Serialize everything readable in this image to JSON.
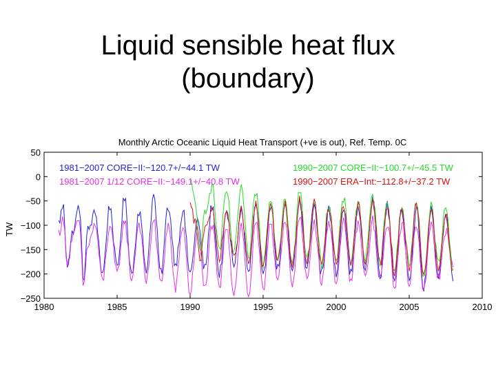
{
  "slide": {
    "title_line1": "Liquid sensible heat flux",
    "title_line2": "(boundary)"
  },
  "chart_data": {
    "type": "line",
    "title": "Monthly Arctic Oceanic Liquid Heat Transport (+ve is out), Ref. Temp. 0C",
    "ylabel": "TW",
    "xlabel": "",
    "xlim": [
      1980,
      2010
    ],
    "ylim": [
      -250,
      50
    ],
    "x_ticks": [
      1980,
      1985,
      1990,
      1995,
      2000,
      2005,
      2010
    ],
    "y_ticks": [
      50,
      0,
      -50,
      -100,
      -150,
      -200,
      -250
    ],
    "grid": false,
    "legend_placement": "top (two columns, text labels)",
    "series": [
      {
        "name": "1981−2007 CORE−II:−120.7+/−44.1 TW",
        "color": "#1f1fd6",
        "start": 1981.0,
        "end": 2008.0,
        "mean": -120.7,
        "std": 44.1,
        "sample_points": [
          [
            1981.0,
            -95
          ],
          [
            1981.3,
            -60
          ],
          [
            1981.6,
            -180
          ],
          [
            1982.0,
            -110
          ],
          [
            1982.4,
            -60
          ],
          [
            1982.7,
            -210
          ],
          [
            1983.0,
            -110
          ],
          [
            1983.5,
            -75
          ],
          [
            1984.0,
            -200
          ],
          [
            1984.5,
            -60
          ],
          [
            1985.0,
            -190
          ],
          [
            1985.5,
            -45
          ],
          [
            1986.0,
            -200
          ],
          [
            1986.5,
            -70
          ],
          [
            1987.0,
            -190
          ],
          [
            1987.5,
            -40
          ],
          [
            1988.0,
            -200
          ],
          [
            1988.5,
            -60
          ],
          [
            1989.0,
            -180
          ],
          [
            1989.5,
            -70
          ],
          [
            1990.0,
            -200
          ],
          [
            1990.5,
            -90
          ],
          [
            1991.0,
            -190
          ],
          [
            1991.5,
            -60
          ],
          [
            1992.0,
            -200
          ],
          [
            1992.5,
            -75
          ],
          [
            1993.0,
            -180
          ],
          [
            1993.5,
            -70
          ],
          [
            1994.0,
            -200
          ],
          [
            1994.5,
            -60
          ],
          [
            1995.0,
            -210
          ],
          [
            1995.5,
            -55
          ],
          [
            1996.0,
            -190
          ],
          [
            1996.5,
            -65
          ],
          [
            1997.0,
            -200
          ],
          [
            1997.5,
            -50
          ],
          [
            1998.0,
            -190
          ],
          [
            1998.5,
            -60
          ],
          [
            1999.0,
            -200
          ],
          [
            1999.5,
            -70
          ],
          [
            2000.0,
            -200
          ],
          [
            2000.5,
            -60
          ],
          [
            2001.0,
            -200
          ],
          [
            2001.5,
            -65
          ],
          [
            2002.0,
            -190
          ],
          [
            2002.5,
            -50
          ],
          [
            2003.0,
            -205
          ],
          [
            2003.5,
            -60
          ],
          [
            2004.0,
            -210
          ],
          [
            2004.5,
            -70
          ],
          [
            2005.0,
            -205
          ],
          [
            2005.5,
            -70
          ],
          [
            2006.0,
            -230
          ],
          [
            2006.5,
            -70
          ],
          [
            2007.0,
            -200
          ],
          [
            2007.5,
            -80
          ],
          [
            2008.0,
            -205
          ]
        ]
      },
      {
        "name": "1981−2007 1/12 CORE−II:−149.1+/−40.8 TW",
        "color": "#e62ee6",
        "start": 1981.0,
        "end": 2008.0,
        "mean": -149.1,
        "std": 40.8,
        "sample_points": [
          [
            1981.0,
            -115
          ],
          [
            1981.3,
            -90
          ],
          [
            1981.6,
            -175
          ],
          [
            1982.0,
            -120
          ],
          [
            1982.4,
            -90
          ],
          [
            1982.7,
            -225
          ],
          [
            1983.0,
            -140
          ],
          [
            1983.5,
            -100
          ],
          [
            1984.0,
            -215
          ],
          [
            1984.5,
            -100
          ],
          [
            1985.0,
            -200
          ],
          [
            1985.5,
            -90
          ],
          [
            1986.0,
            -210
          ],
          [
            1986.5,
            -95
          ],
          [
            1987.0,
            -215
          ],
          [
            1987.5,
            -90
          ],
          [
            1988.0,
            -220
          ],
          [
            1988.5,
            -100
          ],
          [
            1989.0,
            -230
          ],
          [
            1989.5,
            -100
          ],
          [
            1990.0,
            -240
          ],
          [
            1990.5,
            -110
          ],
          [
            1991.0,
            -230
          ],
          [
            1991.5,
            -100
          ],
          [
            1992.0,
            -230
          ],
          [
            1992.5,
            -100
          ],
          [
            1993.0,
            -240
          ],
          [
            1993.5,
            -100
          ],
          [
            1994.0,
            -245
          ],
          [
            1994.5,
            -95
          ],
          [
            1995.0,
            -235
          ],
          [
            1995.5,
            -90
          ],
          [
            1996.0,
            -215
          ],
          [
            1996.5,
            -95
          ],
          [
            1997.0,
            -220
          ],
          [
            1997.5,
            -80
          ],
          [
            1998.0,
            -215
          ],
          [
            1998.5,
            -90
          ],
          [
            1999.0,
            -215
          ],
          [
            1999.5,
            -90
          ],
          [
            2000.0,
            -215
          ],
          [
            2000.5,
            -95
          ],
          [
            2001.0,
            -215
          ],
          [
            2001.5,
            -95
          ],
          [
            2002.0,
            -210
          ],
          [
            2002.5,
            -90
          ],
          [
            2003.0,
            -215
          ],
          [
            2003.5,
            -95
          ],
          [
            2004.0,
            -225
          ],
          [
            2004.5,
            -95
          ],
          [
            2005.0,
            -220
          ],
          [
            2005.5,
            -95
          ],
          [
            2006.0,
            -235
          ],
          [
            2006.5,
            -100
          ],
          [
            2007.0,
            -210
          ],
          [
            2007.5,
            -110
          ],
          [
            2008.0,
            -185
          ]
        ]
      },
      {
        "name": "1990−2007 CORE−II:−100.7+/−45.5 TW",
        "color": "#22dd22",
        "start": 1990.0,
        "end": 2008.0,
        "mean": -100.7,
        "std": 45.5,
        "sample_points": [
          [
            1990.0,
            -10
          ],
          [
            1990.3,
            -40
          ],
          [
            1990.7,
            -160
          ],
          [
            1991.0,
            -70
          ],
          [
            1991.5,
            -20
          ],
          [
            1992.0,
            -150
          ],
          [
            1992.5,
            -30
          ],
          [
            1993.0,
            -160
          ],
          [
            1993.5,
            -20
          ],
          [
            1994.0,
            -170
          ],
          [
            1994.5,
            -30
          ],
          [
            1995.0,
            -180
          ],
          [
            1995.5,
            -40
          ],
          [
            1996.0,
            -170
          ],
          [
            1996.5,
            -40
          ],
          [
            1997.0,
            -180
          ],
          [
            1997.5,
            -30
          ],
          [
            1998.0,
            -170
          ],
          [
            1998.5,
            -45
          ],
          [
            1999.0,
            -180
          ],
          [
            1999.5,
            -55
          ],
          [
            2000.0,
            -175
          ],
          [
            2000.5,
            -45
          ],
          [
            2001.0,
            -175
          ],
          [
            2001.5,
            -50
          ],
          [
            2002.0,
            -170
          ],
          [
            2002.5,
            -40
          ],
          [
            2003.0,
            -175
          ],
          [
            2003.5,
            -50
          ],
          [
            2004.0,
            -190
          ],
          [
            2004.5,
            -60
          ],
          [
            2005.0,
            -180
          ],
          [
            2005.5,
            -55
          ],
          [
            2006.0,
            -205
          ],
          [
            2006.5,
            -60
          ],
          [
            2007.0,
            -180
          ],
          [
            2007.5,
            -65
          ],
          [
            2008.0,
            -185
          ]
        ]
      },
      {
        "name": "1990−2007 ERA−Int:−112.8+/−37.2 TW",
        "color": "#dd1111",
        "start": 1990.0,
        "end": 2008.0,
        "mean": -112.8,
        "std": 37.2,
        "sample_points": [
          [
            1990.0,
            -60
          ],
          [
            1990.3,
            -90
          ],
          [
            1990.7,
            -170
          ],
          [
            1991.0,
            -100
          ],
          [
            1991.5,
            -70
          ],
          [
            1992.0,
            -165
          ],
          [
            1992.5,
            -70
          ],
          [
            1993.0,
            -170
          ],
          [
            1993.5,
            -70
          ],
          [
            1994.0,
            -180
          ],
          [
            1994.5,
            -60
          ],
          [
            1995.0,
            -190
          ],
          [
            1995.5,
            -55
          ],
          [
            1996.0,
            -175
          ],
          [
            1996.5,
            -60
          ],
          [
            1997.0,
            -185
          ],
          [
            1997.5,
            -50
          ],
          [
            1998.0,
            -175
          ],
          [
            1998.5,
            -55
          ],
          [
            1999.0,
            -185
          ],
          [
            1999.5,
            -65
          ],
          [
            2000.0,
            -180
          ],
          [
            2000.5,
            -55
          ],
          [
            2001.0,
            -185
          ],
          [
            2001.5,
            -60
          ],
          [
            2002.0,
            -175
          ],
          [
            2002.5,
            -50
          ],
          [
            2003.0,
            -180
          ],
          [
            2003.5,
            -60
          ],
          [
            2004.0,
            -195
          ],
          [
            2004.5,
            -65
          ],
          [
            2005.0,
            -185
          ],
          [
            2005.5,
            -60
          ],
          [
            2006.0,
            -210
          ],
          [
            2006.5,
            -70
          ],
          [
            2007.0,
            -185
          ],
          [
            2007.5,
            -80
          ],
          [
            2008.0,
            -190
          ]
        ]
      }
    ]
  }
}
